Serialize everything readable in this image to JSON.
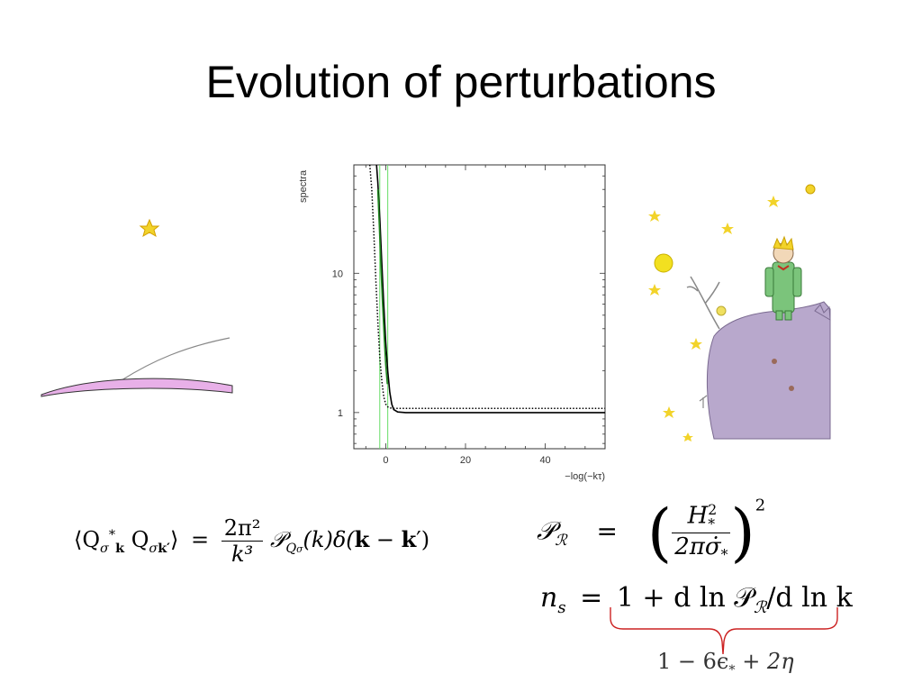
{
  "slide": {
    "title": "Evolution of perturbations"
  },
  "chart_data": {
    "type": "line",
    "xlabel": "−log(−kτ)",
    "ylabel": "spectra",
    "xlim": [
      -8,
      55
    ],
    "y_scale": "log",
    "ylim": [
      0.55,
      60
    ],
    "x_ticks": [
      0,
      20,
      40
    ],
    "x_tick_labels": [
      "0",
      "20",
      "40"
    ],
    "y_ticks": [
      1,
      10
    ],
    "y_tick_labels": [
      "1",
      "10"
    ],
    "vertical_lines": [
      {
        "x": -1.5,
        "color": "#66dd66"
      },
      {
        "x": 0.5,
        "color": "#66dd66"
      }
    ],
    "series": [
      {
        "style": "solid",
        "color": "#000000",
        "x": [
          -2.3,
          -2.0,
          -1.5,
          -1.0,
          -0.5,
          0.0,
          0.5,
          1.0,
          1.5,
          2.0,
          3.0,
          5.0,
          10.0,
          20.0,
          40.0,
          55.0
        ],
        "y": [
          60,
          45,
          25,
          12,
          6,
          3.2,
          2.0,
          1.4,
          1.15,
          1.05,
          1.01,
          1.0,
          1.0,
          1.0,
          1.0,
          1.0
        ]
      },
      {
        "style": "dotted",
        "color": "#000000",
        "x": [
          -4.0,
          -3.5,
          -3.0,
          -2.5,
          -2.0,
          -1.5,
          -1.0,
          -0.5,
          0.0,
          0.5,
          1.0,
          2.0,
          5.0,
          20.0,
          40.0,
          55.0
        ],
        "y": [
          60,
          40,
          20,
          9,
          4.5,
          2.5,
          1.7,
          1.3,
          1.15,
          1.1,
          1.08,
          1.07,
          1.07,
          1.07,
          1.07,
          1.07
        ]
      },
      {
        "style": "solid",
        "color": "#228822",
        "x": [
          -2.0,
          -1.6,
          -1.2,
          -0.8,
          -0.4,
          0.0,
          0.4
        ],
        "y": [
          40,
          22,
          11,
          6,
          3.5,
          2.2,
          1.6
        ]
      }
    ]
  },
  "equations": {
    "eq1": {
      "lhs": "⟨Q",
      "sigma": "σ",
      "k": "k",
      "star": "*",
      "q2": " Q",
      "k2": "k′",
      "rangle": "⟩",
      "eq": "=",
      "num": "2π²",
      "den": "k³",
      "p": "𝒫",
      "psub": "Q",
      "psubsub": "σ",
      "rest_open": "(k)δ(",
      "kb": "k",
      "minus": " − ",
      "kb2": "k",
      "rest_close": "′)"
    },
    "eq2": {
      "p": "𝒫",
      "psub": "ℛ",
      "eq": "=",
      "lparen": "(",
      "num": "H",
      "num_sup": "2",
      "num_sub": "*",
      "den": "2πσ̇",
      "den_sub": "*",
      "rparen": ")",
      "exp": "2"
    },
    "eq3": {
      "n": "n",
      "nsub": "s",
      "eq": "=",
      "rhs": "1 + d ln 𝒫",
      "rhs_sub": "ℛ",
      "rhs_end": "/d ln k"
    },
    "eq4": {
      "text": "1 − 6ϵ",
      "sub": "*",
      "text_end": " + 2η"
    }
  },
  "colors": {
    "brace": "#cc2222",
    "green_line": "#66dd66",
    "planet_purple": "#b8a8cc",
    "pink_planet": "#e8b0e8",
    "star_yellow": "#f2d32a",
    "prince_green": "#7bc47b"
  }
}
